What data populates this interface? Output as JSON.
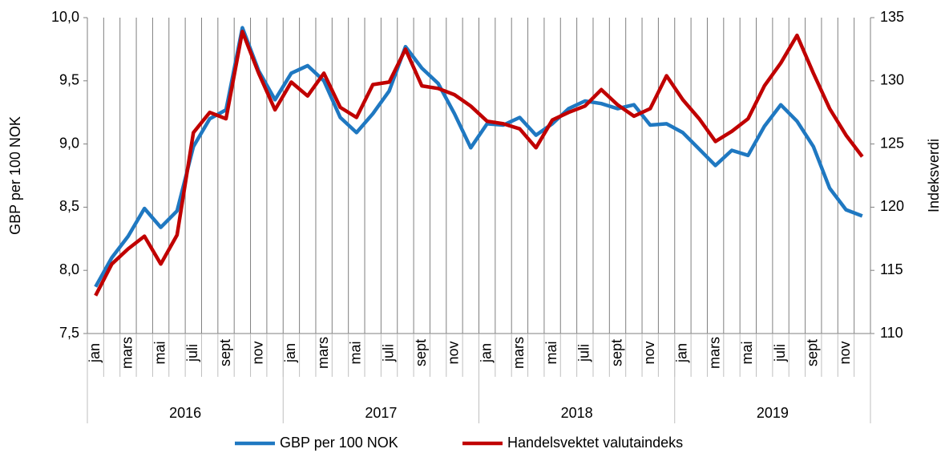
{
  "chart_data": {
    "type": "line",
    "y_label": "GBP per 100 NOK",
    "y2_label": "Indeksverdi",
    "categories": [
      "jan",
      null,
      "mars",
      null,
      "mai",
      null,
      "juli",
      null,
      "sept",
      null,
      "nov",
      null,
      "jan",
      null,
      "mars",
      null,
      "mai",
      null,
      "juli",
      null,
      "sept",
      null,
      "nov",
      null,
      "jan",
      null,
      "mars",
      null,
      "mai",
      null,
      "juli",
      null,
      "sept",
      null,
      "nov",
      null,
      "jan",
      null,
      "mars",
      null,
      "mai",
      null,
      "juli",
      null,
      "sept",
      null,
      "nov",
      null
    ],
    "groups": [
      "2016",
      "2017",
      "2018",
      "2019"
    ],
    "series": [
      {
        "name": "GBP per 100 NOK",
        "color": "#1f78c1",
        "axis": "y",
        "values": [
          7.87,
          8.1,
          8.27,
          8.49,
          8.34,
          8.47,
          8.98,
          9.2,
          9.27,
          9.92,
          9.58,
          9.35,
          9.56,
          9.62,
          9.5,
          9.21,
          9.09,
          9.24,
          9.42,
          9.77,
          9.6,
          9.48,
          9.24,
          8.97,
          9.16,
          9.15,
          9.21,
          9.07,
          9.16,
          9.28,
          9.34,
          9.32,
          9.28,
          9.31,
          9.15,
          9.16,
          9.09,
          8.96,
          8.83,
          8.95,
          8.91,
          9.14,
          9.31,
          9.18,
          8.98,
          8.65,
          8.48,
          8.43
        ]
      },
      {
        "name": "Handelsvektet valutaindeks",
        "color": "#c00000",
        "axis": "y2",
        "values": [
          113.0,
          115.5,
          116.7,
          117.7,
          115.5,
          117.8,
          125.9,
          127.5,
          127.0,
          133.9,
          130.6,
          127.7,
          129.9,
          128.8,
          130.6,
          127.9,
          127.1,
          129.7,
          129.9,
          132.5,
          129.6,
          129.4,
          128.9,
          128.0,
          126.8,
          126.6,
          126.2,
          124.7,
          126.9,
          127.5,
          128.0,
          129.3,
          128.1,
          127.2,
          127.8,
          130.4,
          128.5,
          127.0,
          125.2,
          126.0,
          127.0,
          129.6,
          131.4,
          133.6,
          130.6,
          127.8,
          125.7,
          124.0
        ]
      }
    ],
    "ylim": [
      7.5,
      10.0
    ],
    "yticks": [
      {
        "value": 7.5,
        "label": "7,5"
      },
      {
        "value": 8.0,
        "label": "8,0"
      },
      {
        "value": 8.5,
        "label": "8,5"
      },
      {
        "value": 9.0,
        "label": "9,0"
      },
      {
        "value": 9.5,
        "label": "9,5"
      },
      {
        "value": 10.0,
        "label": "10,0"
      }
    ],
    "y2lim": [
      110,
      135
    ],
    "y2ticks": [
      110,
      115,
      120,
      125,
      130,
      135
    ],
    "legend": "bottom"
  }
}
